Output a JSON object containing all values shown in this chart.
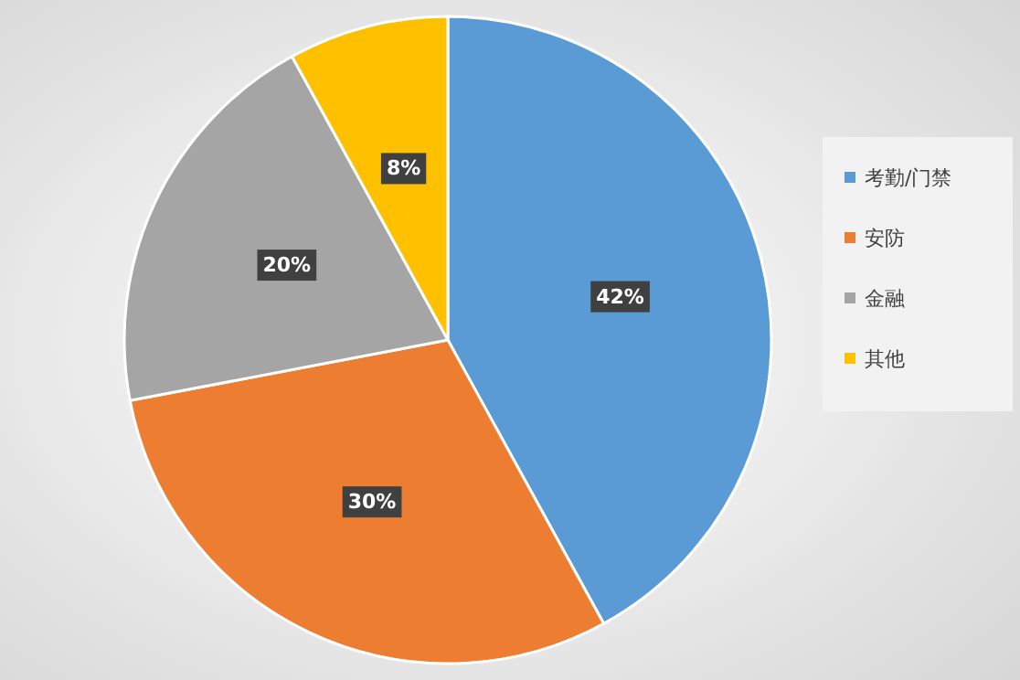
{
  "chart_data": {
    "type": "pie",
    "categories": [
      "考勤/门禁",
      "安防",
      "金融",
      "其他"
    ],
    "values": [
      42,
      30,
      20,
      8
    ],
    "colors": [
      "#5b9bd5",
      "#ed7d31",
      "#a5a5a5",
      "#ffc000"
    ],
    "value_labels": [
      "42%",
      "30%",
      "20%",
      "8%"
    ],
    "legend": "right"
  }
}
